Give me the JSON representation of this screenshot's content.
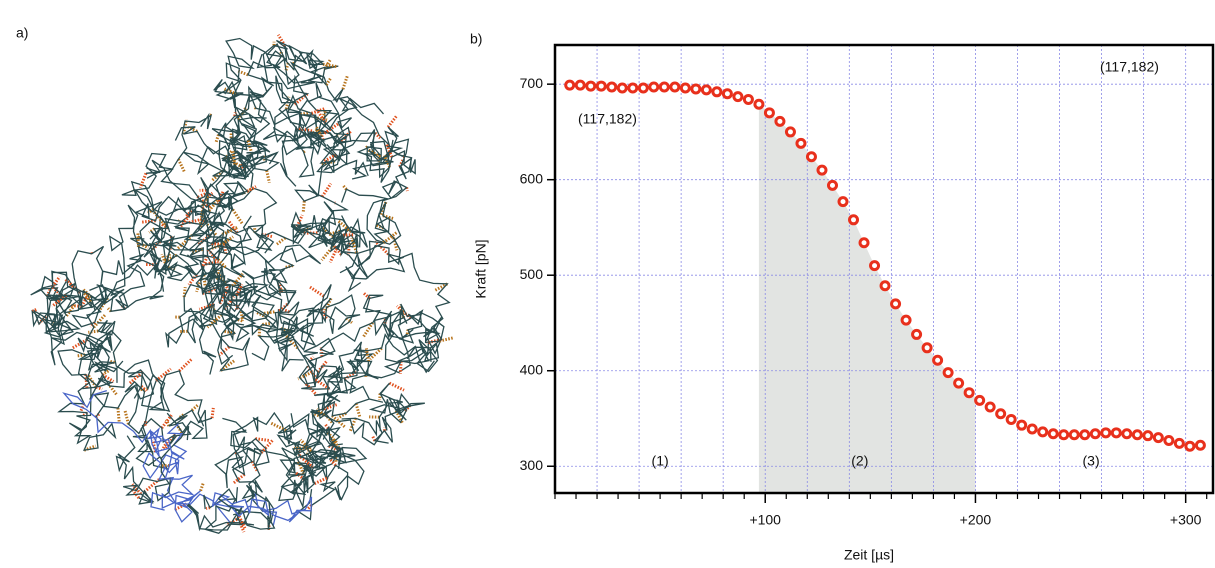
{
  "panel_a_label": "a)",
  "chart_data": {
    "type": "scatter",
    "panel_label": "b)",
    "xlabel": "Zeit [µs]",
    "ylabel": "Kraft [pN]",
    "annotations": [
      "(117,182)",
      "(117,182)"
    ],
    "regions": [
      "(1)",
      "(2)",
      "(3)"
    ],
    "shaded_region": [
      97,
      200
    ],
    "shade_color": "#e2e4e2",
    "grid": true,
    "xlim": [
      0,
      313
    ],
    "ylim": [
      272,
      741
    ],
    "xticks": [
      {
        "value": 100,
        "label": "+100"
      },
      {
        "value": 200,
        "label": "+200"
      },
      {
        "value": 300,
        "label": "+300"
      }
    ],
    "xminorticks": [
      0,
      10,
      20,
      30,
      40,
      50,
      60,
      70,
      80,
      90,
      110,
      120,
      130,
      140,
      150,
      160,
      170,
      180,
      190,
      210,
      220,
      230,
      240,
      250,
      260,
      270,
      280,
      290,
      310
    ],
    "xgrid": [
      20,
      40,
      60,
      80,
      100,
      120,
      140,
      160,
      180,
      200,
      220,
      240,
      260,
      280,
      300
    ],
    "yticks": [
      300,
      400,
      500,
      600,
      700
    ],
    "series": [
      {
        "color": "#e8301c",
        "x": [
          7,
          12,
          17,
          22,
          27,
          32,
          37,
          42,
          47,
          52,
          57,
          62,
          67,
          72,
          77,
          82,
          87,
          92,
          97,
          102,
          107,
          112,
          117,
          122,
          127,
          132,
          137,
          142,
          147,
          152,
          157,
          162,
          167,
          172,
          177,
          182,
          187,
          192,
          197,
          202,
          207,
          212,
          217,
          222,
          227,
          232,
          237,
          242,
          247,
          252,
          257,
          262,
          267,
          272,
          277,
          282,
          287,
          292,
          297,
          302,
          307
        ],
        "values": [
          699,
          699,
          698,
          698,
          697,
          696,
          696,
          696,
          697,
          697,
          697,
          696,
          695,
          694,
          692,
          690,
          687,
          684,
          679,
          670,
          661,
          650,
          638,
          624,
          610,
          594,
          577,
          558,
          534,
          510,
          489,
          470,
          453,
          438,
          424,
          411,
          398,
          387,
          377,
          369,
          362,
          355,
          349,
          343,
          339,
          336,
          334,
          333,
          333,
          333,
          334,
          335,
          335,
          334,
          333,
          332,
          330,
          327,
          324,
          321,
          322
        ]
      }
    ]
  }
}
